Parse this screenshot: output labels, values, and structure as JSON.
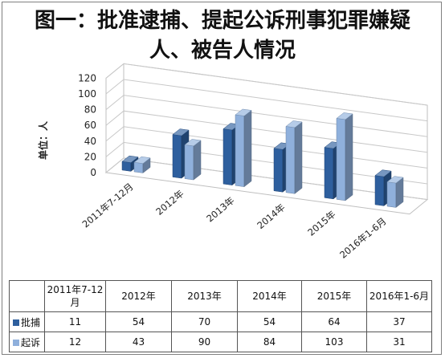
{
  "title_line1": "图一：批准逮捕、提起公诉刑事犯罪嫌疑",
  "title_line2": "人、被告人情况",
  "chart_data": {
    "type": "bar",
    "title": "图一：批准逮捕、提起公诉刑事犯罪嫌疑人、被告人情况",
    "ylabel": "单位：人",
    "ylim": [
      0,
      120
    ],
    "yticks": [
      0,
      20,
      40,
      60,
      80,
      100,
      120
    ],
    "grid": true,
    "legend": "data-table",
    "categories": [
      "2011年7-12月",
      "2012年",
      "2013年",
      "2014年",
      "2015年",
      "2016年1-6月"
    ],
    "table_header": [
      "2011年7-12\n月",
      "2012年",
      "2013年",
      "2014年",
      "2015年",
      "2016年1-6月"
    ],
    "series": [
      {
        "name": "批捕",
        "values": [
          11,
          54,
          70,
          54,
          64,
          37
        ],
        "color": "#2e5f9e"
      },
      {
        "name": "起诉",
        "values": [
          12,
          43,
          90,
          84,
          103,
          31
        ],
        "color": "#8fb0dc"
      }
    ]
  }
}
